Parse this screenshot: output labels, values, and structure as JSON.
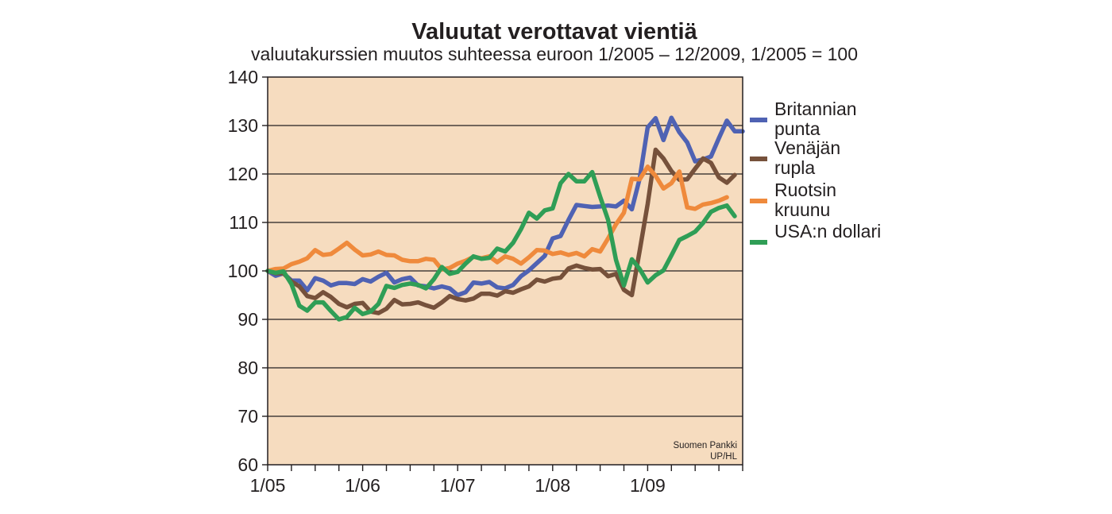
{
  "chart_data": {
    "type": "line",
    "title": "Valuutat verottavat vientiä",
    "subtitle": "valuutakurssien muutos suhteessa euroon 1/2005 – 12/2009, 1/2005 = 100",
    "xlabel": "",
    "ylabel": "",
    "ylim": [
      60,
      140
    ],
    "yticks": [
      "140",
      "130",
      "120",
      "110",
      "100",
      "90",
      "80",
      "70",
      "60"
    ],
    "xticks": [
      "1/05",
      "1/06",
      "1/07",
      "1/08",
      "1/09"
    ],
    "grid": true,
    "legend_position": "right",
    "plot_background": "#f6dcbf",
    "source_lines": [
      "Suomen Pankki",
      "UP/HL"
    ],
    "x_period": "monthly, 1/2005 – 12/2009",
    "series": [
      {
        "name_lines": [
          "Britannian",
          "punta"
        ],
        "color": "#4f62b3",
        "values": [
          100,
          99,
          99.5,
          98,
          98,
          96,
          98.5,
          98,
          97,
          97.5,
          97.5,
          97.3,
          98.3,
          97.8,
          98.8,
          99.6,
          97.6,
          98.3,
          98.6,
          97,
          96.8,
          96.4,
          96.8,
          96.4,
          95,
          95.6,
          97.6,
          97.4,
          97.7,
          96.6,
          96.4,
          97.1,
          98.9,
          100.1,
          101.6,
          103.1,
          106.7,
          107.2,
          110.5,
          113.6,
          113.4,
          113.2,
          113.3,
          113.5,
          113.3,
          114.5,
          112.7,
          119.1,
          129.6,
          131.5,
          127,
          131.6,
          128.6,
          126.5,
          122.6,
          123,
          123.6,
          127.4,
          131,
          128.8,
          128.8
        ]
      },
      {
        "name_lines": [
          "Venäjän",
          "rupla"
        ],
        "color": "#76513b",
        "values": [
          100,
          99.5,
          99.5,
          97.8,
          96.8,
          94.8,
          94.4,
          95.6,
          94.6,
          93.2,
          92.5,
          93.2,
          93.4,
          91.6,
          91.3,
          92.2,
          94,
          93.1,
          93.2,
          93.5,
          92.9,
          92.4,
          93.5,
          94.8,
          94.2,
          93.9,
          94.3,
          95.3,
          95.3,
          94.9,
          95.8,
          95.5,
          96.2,
          96.8,
          98.2,
          97.8,
          98.4,
          98.6,
          100.5,
          101.1,
          100.6,
          100.3,
          100.4,
          98.9,
          99.4,
          96.1,
          95,
          104.2,
          113.8,
          125,
          123.2,
          120.6,
          118.8,
          118.9,
          121.1,
          123.2,
          122.3,
          119.3,
          118.2,
          119.8
        ]
      },
      {
        "name_lines": [
          "Ruotsin",
          "kruunu"
        ],
        "color": "#ef8a3c",
        "values": [
          100,
          100.4,
          100.5,
          101.4,
          101.9,
          102.6,
          104.3,
          103.3,
          103.5,
          104.6,
          105.8,
          104.4,
          103.2,
          103.4,
          104,
          103.3,
          103.2,
          102.3,
          102,
          102,
          102.5,
          102.3,
          100.3,
          100.6,
          101.5,
          102.1,
          102.9,
          102.6,
          103,
          101.8,
          103,
          102.5,
          101.5,
          102.8,
          104.3,
          104.2,
          103.5,
          103.8,
          103.3,
          103.7,
          103,
          104.5,
          104,
          106.7,
          109.6,
          112,
          119,
          118.9,
          121.5,
          119.6,
          117,
          118.1,
          120.5,
          113.1,
          112.8,
          113.7,
          114,
          114.5,
          115.2
        ]
      },
      {
        "name_lines": [
          "USA:n dollari"
        ],
        "color": "#2f9e56",
        "values": [
          100,
          99.6,
          99.9,
          97.3,
          92.8,
          91.8,
          93.5,
          93.5,
          91.7,
          90,
          90.5,
          92.4,
          91.1,
          91.6,
          93.2,
          96.9,
          96.5,
          97.1,
          97.4,
          97.1,
          96.4,
          98.3,
          100.8,
          99.4,
          99.8,
          101.5,
          103,
          102.5,
          102.7,
          104.6,
          104,
          105.8,
          108.6,
          112,
          110.8,
          112.5,
          112.9,
          118.1,
          120,
          118.5,
          118.5,
          120.4,
          115.3,
          110.5,
          102.3,
          97,
          102.4,
          100.4,
          97.6,
          99.1,
          100.1,
          103.2,
          106.4,
          107.2,
          108.1,
          109.9,
          112.2,
          113,
          113.5,
          111.3
        ]
      }
    ]
  }
}
